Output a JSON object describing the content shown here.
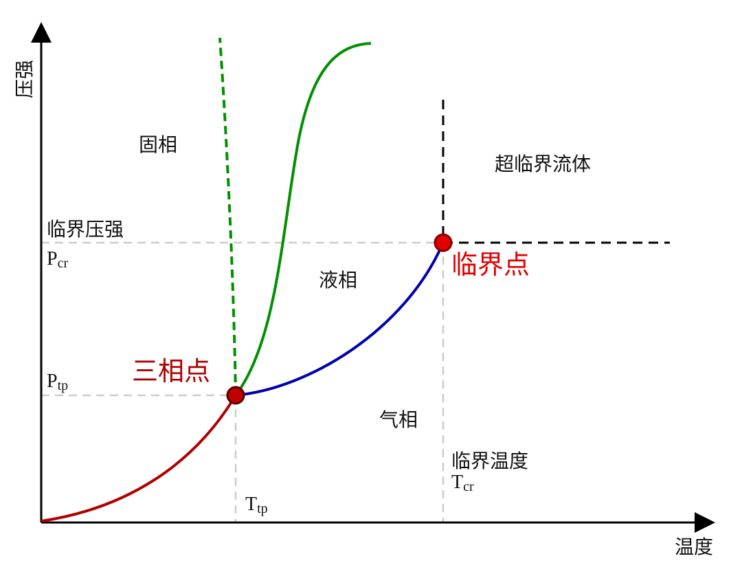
{
  "axes": {
    "y_label": "压强",
    "x_label": "温度"
  },
  "regions": {
    "solid": "固相",
    "liquid": "液相",
    "gas": "气相",
    "supercritical": "超临界流体"
  },
  "critical_pressure": {
    "label": "临界压强",
    "symbol": "P",
    "subscript": "cr"
  },
  "triple_pressure": {
    "symbol": "P",
    "subscript": "tp"
  },
  "triple_temperature": {
    "symbol": "T",
    "subscript": "tp"
  },
  "critical_temperature": {
    "label": "临界温度",
    "symbol": "T",
    "subscript": "cr"
  },
  "points": {
    "triple": "三相点",
    "critical": "临界点"
  }
}
